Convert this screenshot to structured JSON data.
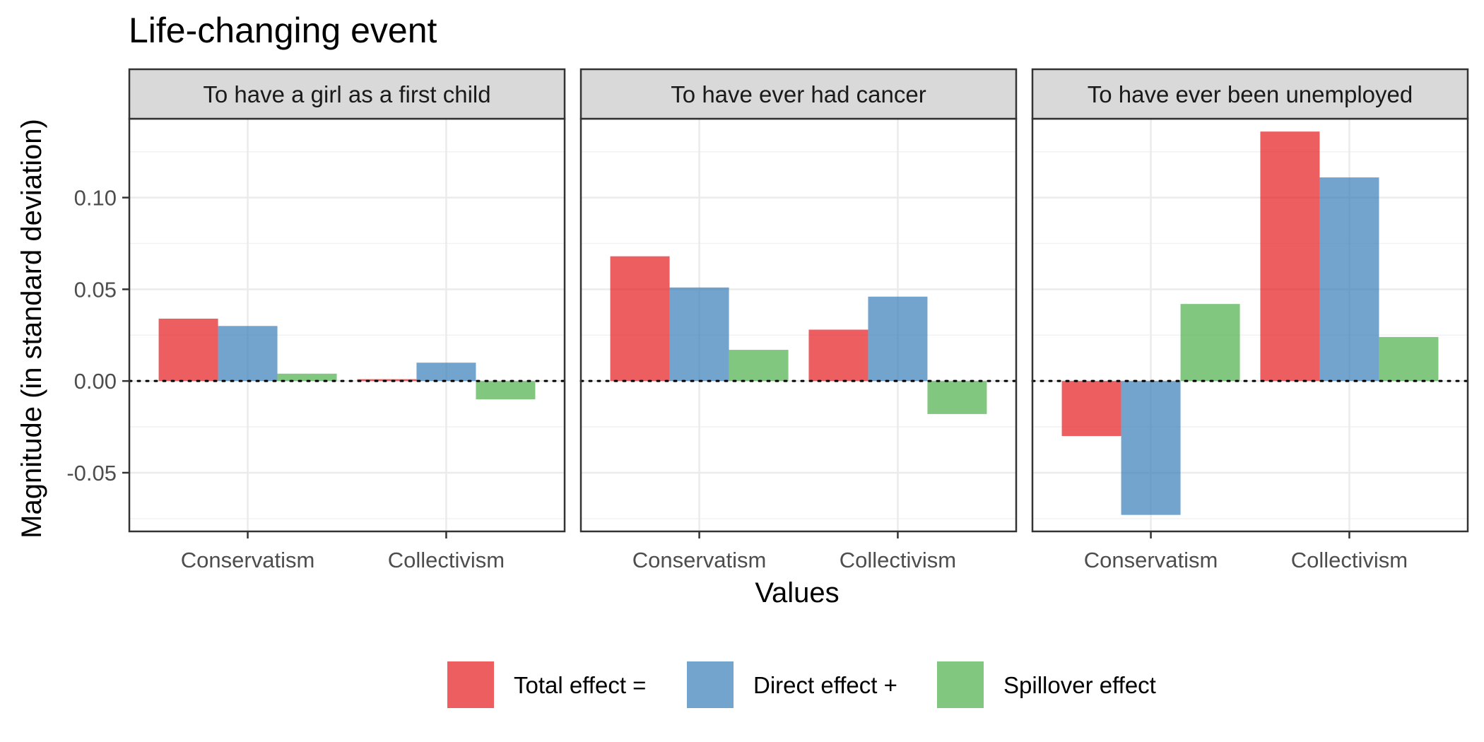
{
  "chart_data": {
    "type": "bar",
    "title": "Life-changing event",
    "xlabel": "Values",
    "ylabel": "Magnitude (in standard deviation)",
    "ylim": [
      -0.082,
      0.143
    ],
    "y_ticks": [
      -0.05,
      0.0,
      0.05,
      0.1
    ],
    "y_tick_labels": [
      "-0.05",
      "0.00",
      "0.05",
      "0.10"
    ],
    "categories": [
      "Conservatism",
      "Collectivism"
    ],
    "grid": true,
    "reference_line": {
      "y": 0,
      "style": "dotted"
    },
    "legend_position": "bottom",
    "series": [
      {
        "name": "Total effect =",
        "color": "#E41A1C"
      },
      {
        "name": "Direct effect +",
        "color": "#377EB8"
      },
      {
        "name": "Spillover effect",
        "color": "#4DAF4A"
      }
    ],
    "panels": [
      {
        "label": "To have a girl as a first child",
        "values": [
          [
            0.034,
            0.03,
            0.004
          ],
          [
            0.001,
            0.01,
            -0.01
          ]
        ]
      },
      {
        "label": "To have ever had cancer",
        "values": [
          [
            0.068,
            0.051,
            0.017
          ],
          [
            0.028,
            0.046,
            -0.018
          ]
        ]
      },
      {
        "label": "To have ever been unemployed",
        "values": [
          [
            -0.03,
            -0.073,
            0.042
          ],
          [
            0.136,
            0.111,
            0.024
          ]
        ]
      }
    ]
  }
}
